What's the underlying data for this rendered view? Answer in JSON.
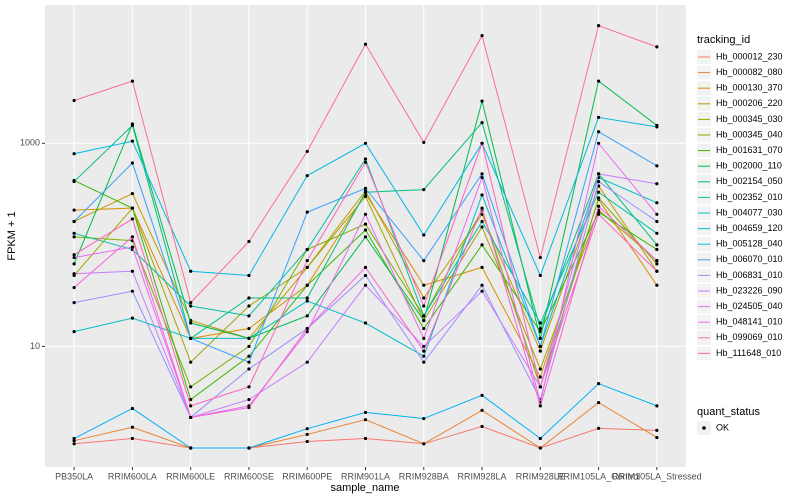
{
  "chart_data": {
    "type": "line",
    "log": true,
    "grid": true,
    "xlabel": "sample_name",
    "ylabel": "FPKM + 1",
    "legend_title": "tracking_id",
    "categories": [
      "PB350LA",
      "RRIM600LA",
      "RRIM600LE",
      "RRIM600SE",
      "RRIM600PE",
      "RRIM901LA",
      "RRIM928BA",
      "RRIM928LA",
      "RRIM928LE",
      "RRIM105LA_Control",
      "RRIM105LA_Stressed"
    ],
    "ylim": [
      0.65,
      23000
    ],
    "yticks": [
      10,
      1000
    ],
    "series": [
      {
        "name": "Hb_000012_230",
        "color": "#F8766D",
        "values": [
          1.1,
          1.24,
          1.0,
          1.0,
          1.16,
          1.24,
          1.1,
          1.63,
          1.0,
          1.56,
          1.49
        ]
      },
      {
        "name": "Hb_000082_080",
        "color": "#EA8331",
        "values": [
          1.18,
          1.6,
          1.0,
          1.0,
          1.36,
          1.9,
          1.1,
          2.35,
          1.0,
          2.8,
          1.27
        ]
      },
      {
        "name": "Hb_000130_370",
        "color": "#D89000",
        "values": [
          220,
          230,
          12,
          15,
          40,
          320,
          40,
          60,
          5,
          280,
          40
        ]
      },
      {
        "name": "Hb_000206_220",
        "color": "#C09B00",
        "values": [
          170,
          320,
          18,
          12,
          60,
          340,
          30,
          200,
          9,
          380,
          55
        ]
      },
      {
        "name": "Hb_000345_030",
        "color": "#A3A500",
        "values": [
          50,
          230,
          7,
          25,
          60,
          300,
          18,
          150,
          6,
          220,
          70
        ]
      },
      {
        "name": "Hb_000345_040",
        "color": "#7CAE00",
        "values": [
          120,
          110,
          4,
          10,
          90,
          160,
          20,
          220,
          4,
          290,
          65
        ]
      },
      {
        "name": "Hb_001631_070",
        "color": "#39B600",
        "values": [
          430,
          230,
          3,
          8,
          40,
          140,
          15,
          100,
          14,
          210,
          90
        ]
      },
      {
        "name": "Hb_002000_110",
        "color": "#00BB4E",
        "values": [
          65,
          1550,
          17,
          12,
          20,
          120,
          18,
          2600,
          12,
          4100,
          1500
        ]
      },
      {
        "name": "Hb_002154_050",
        "color": "#00BF7D",
        "values": [
          420,
          1500,
          12,
          30,
          30,
          330,
          350,
          1600,
          15,
          500,
          100
        ]
      },
      {
        "name": "Hb_002352_010",
        "color": "#00C1A3",
        "values": [
          130,
          90,
          25,
          20,
          90,
          700,
          20,
          170,
          17,
          330,
          130
        ]
      },
      {
        "name": "Hb_004077_030",
        "color": "#00BFC4",
        "values": [
          14,
          19,
          12,
          12,
          28,
          17,
          8,
          310,
          10,
          460,
          260
        ]
      },
      {
        "name": "Hb_004659_120",
        "color": "#00BAE0",
        "values": [
          790,
          1050,
          55,
          50,
          480,
          1000,
          125,
          1000,
          50,
          1800,
          1450
        ]
      },
      {
        "name": "Hb_005128_040",
        "color": "#00B0F6",
        "values": [
          1.24,
          2.45,
          1.0,
          1.0,
          1.55,
          2.24,
          1.95,
          3.3,
          1.24,
          4.3,
          2.6
        ]
      },
      {
        "name": "Hb_006070_010",
        "color": "#35A2FF",
        "values": [
          170,
          640,
          12,
          7,
          210,
          360,
          70,
          500,
          10,
          1300,
          600
        ]
      },
      {
        "name": "Hb_006831_010",
        "color": "#9590FF",
        "values": [
          27,
          35,
          2,
          6,
          15,
          50,
          7,
          40,
          3,
          420,
          170
        ]
      },
      {
        "name": "Hb_023226_090",
        "color": "#C77CFF",
        "values": [
          52,
          55,
          2,
          3,
          7,
          40,
          10,
          35,
          4,
          500,
          400
        ]
      },
      {
        "name": "Hb_024505_040",
        "color": "#E76BF3",
        "values": [
          75,
          95,
          2,
          2.6,
          14,
          200,
          12,
          460,
          2.8,
          1000,
          200
        ]
      },
      {
        "name": "Hb_048141_010",
        "color": "#FA62DB",
        "values": [
          38,
          120,
          2,
          2.5,
          15,
          60,
          9,
          230,
          2.6,
          240,
          70
        ]
      },
      {
        "name": "Hb_099069_010",
        "color": "#FF62BC",
        "values": [
          80,
          180,
          2.6,
          4,
          70,
          650,
          25,
          1000,
          4,
          200,
          55
        ]
      },
      {
        "name": "Hb_111648_010",
        "color": "#FF6C91",
        "values": [
          2640,
          4100,
          27,
          108,
          832,
          9440,
          1020,
          11500,
          75,
          14400,
          8900
        ]
      }
    ],
    "shape_legend": {
      "title": "quant_status",
      "entries": [
        "OK"
      ]
    }
  }
}
